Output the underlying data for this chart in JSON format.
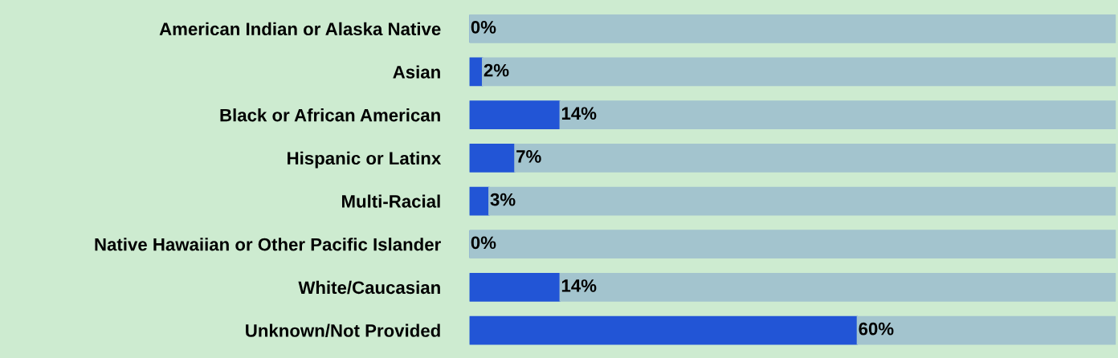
{
  "chart_data": {
    "type": "bar",
    "orientation": "horizontal",
    "stacked": true,
    "categories": [
      "American Indian or Alaska Native",
      "Asian",
      "Black or African American",
      "Hispanic or Latinx",
      "Multi-Racial",
      "Native Hawaiian or Other Pacific Islander",
      "White/Caucasian",
      "Unknown/Not Provided"
    ],
    "series": [
      {
        "color": "#2255d6",
        "values": [
          0,
          2,
          14,
          7,
          3,
          0,
          14,
          60
        ],
        "value_labels": [
          "0%",
          "2%",
          "14%",
          "7%",
          "3%",
          "0%",
          "14%",
          "60%"
        ]
      },
      {
        "color": "#a3c4ce",
        "values": [
          100,
          98,
          86,
          93,
          97,
          100,
          86,
          40
        ]
      }
    ],
    "xlim": [
      0,
      100
    ],
    "tick_labels": "y",
    "grid": false
  }
}
